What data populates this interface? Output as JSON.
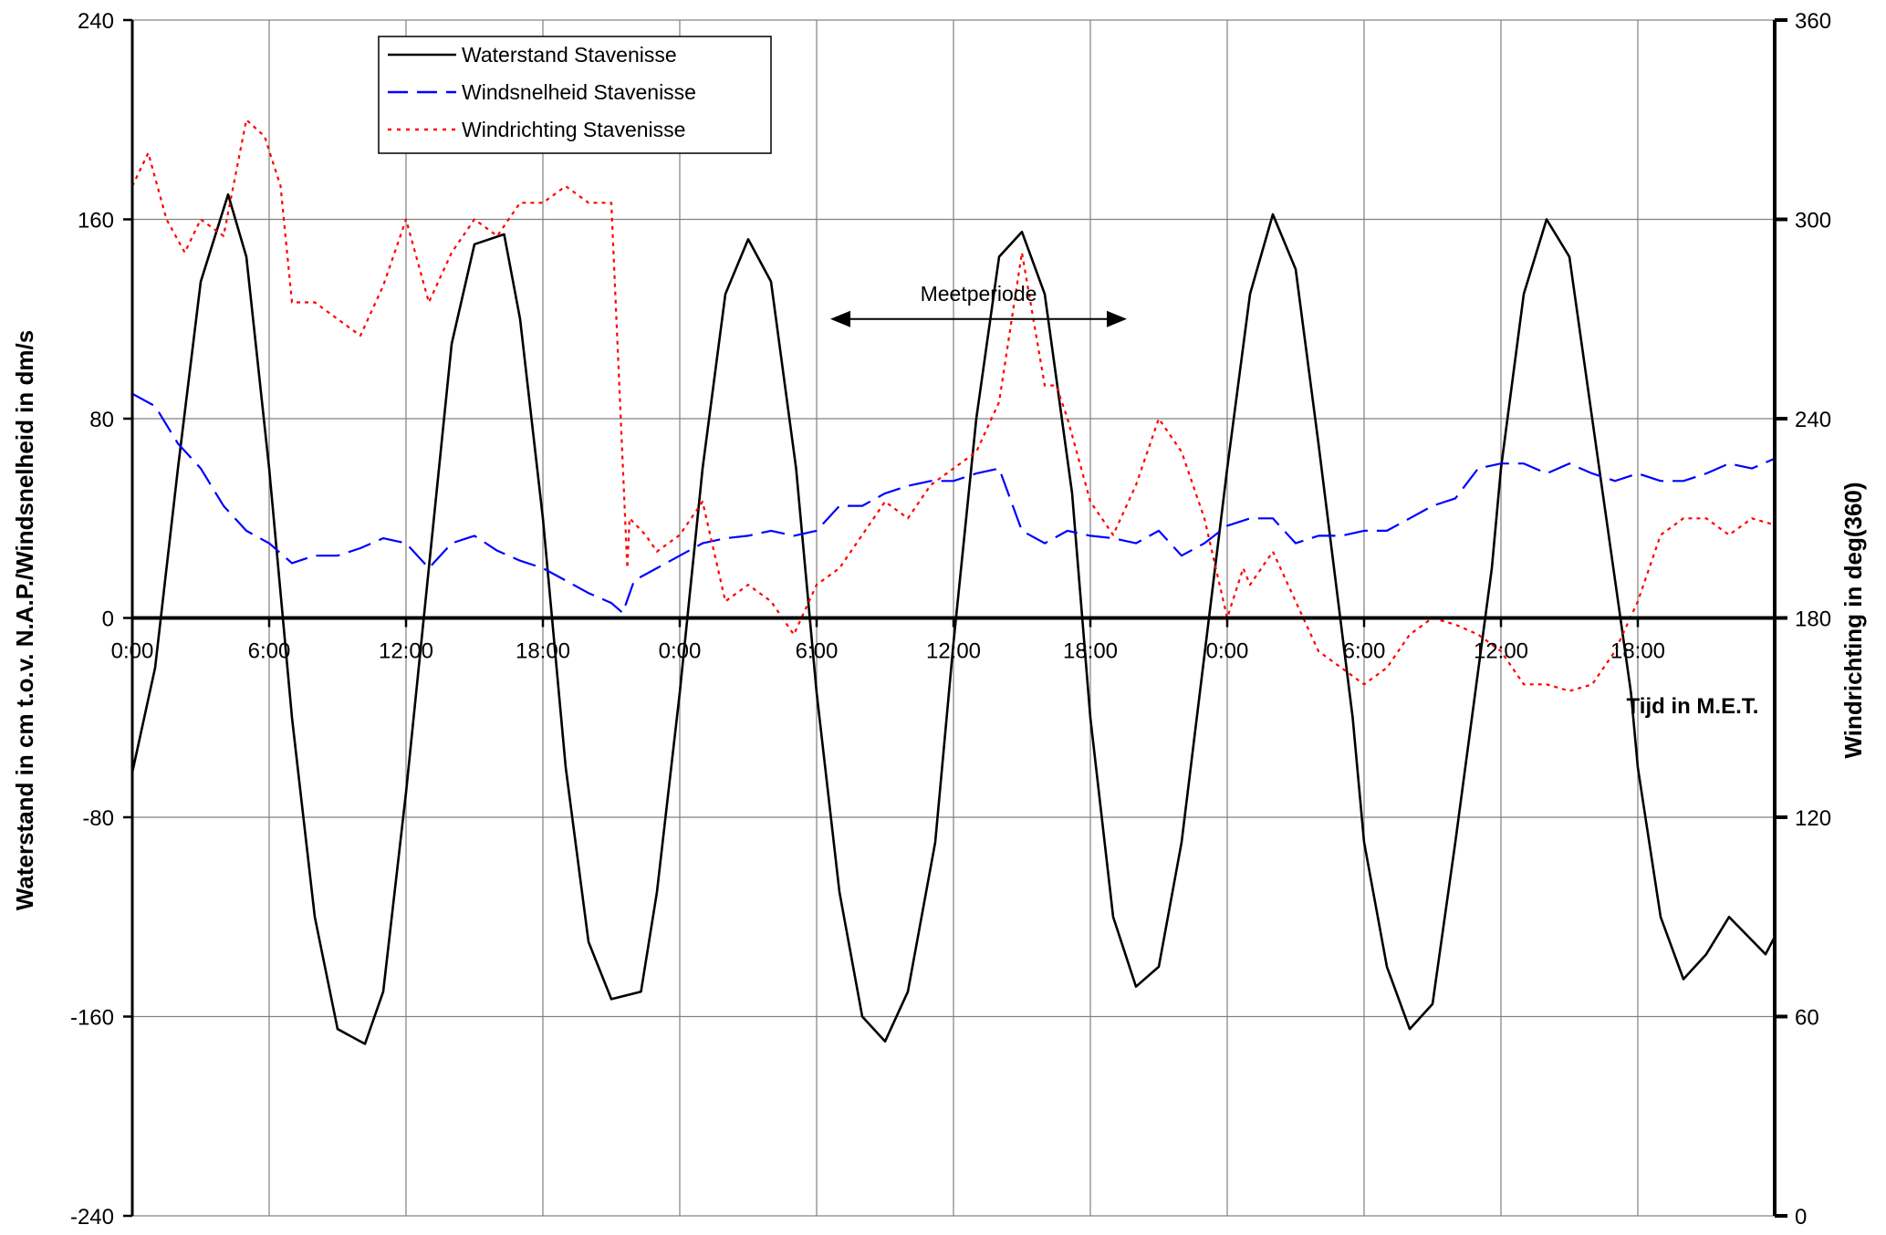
{
  "chart_data": {
    "type": "line",
    "title": "",
    "xlabel": "Tijd in M.E.T.",
    "ylabel": "Waterstand in cm t.o.v. N.A.P./Windsnelheid in dm/s",
    "y2label": "Windrichting in deg(360)",
    "x_unit": "hours",
    "xlim": [
      0,
      72
    ],
    "ylim": [
      -240,
      240
    ],
    "y2lim": [
      0,
      360
    ],
    "x_ticks": [
      0,
      6,
      12,
      18,
      24,
      30,
      36,
      42,
      48,
      54,
      60,
      66
    ],
    "x_tick_labels": [
      "0:00",
      "6:00",
      "12:00",
      "18:00",
      "0:00",
      "6:00",
      "12:00",
      "18:00",
      "0:00",
      "6:00",
      "12:00",
      "18:00"
    ],
    "y_ticks": [
      -240,
      -160,
      -80,
      0,
      80,
      160,
      240
    ],
    "y_tick_labels": [
      "-240",
      "-160",
      "-80",
      "0",
      "80",
      "160",
      "240"
    ],
    "y2_ticks": [
      0,
      60,
      120,
      180,
      240,
      300,
      360
    ],
    "y2_tick_labels": [
      "0",
      "60",
      "120",
      "180",
      "240",
      "300",
      "360"
    ],
    "grid": true,
    "legend_position": "top-left",
    "annotation": {
      "text": "Meetperiode",
      "x_start": 30.6,
      "x_end": 43.6,
      "y": 120
    },
    "series": [
      {
        "name": "Waterstand Stavenisse",
        "axis": "left",
        "color": "#000000",
        "style": "solid",
        "x": [
          0,
          1,
          2,
          3,
          4.2,
          5,
          6,
          7,
          8,
          9,
          10.2,
          11,
          12,
          13,
          14,
          15,
          16.3,
          17,
          18,
          19,
          20,
          21,
          22.3,
          23,
          24,
          25,
          26,
          27,
          28,
          29.1,
          30,
          31,
          32,
          33,
          34,
          35.2,
          36,
          37,
          38,
          39,
          40,
          41.2,
          42,
          43,
          44,
          45,
          46,
          47.6,
          48,
          49,
          50,
          51,
          52,
          53.5,
          54,
          55,
          56,
          57,
          58,
          59.6,
          60,
          61,
          62,
          63,
          64,
          65.7,
          66,
          67,
          68,
          69,
          70,
          71.6,
          72
        ],
        "values": [
          -62,
          -20,
          60,
          135,
          170,
          145,
          60,
          -40,
          -120,
          -165,
          -171,
          -150,
          -70,
          20,
          110,
          150,
          154,
          120,
          40,
          -60,
          -130,
          -153,
          -150,
          -110,
          -30,
          60,
          130,
          152,
          135,
          60,
          -30,
          -110,
          -160,
          -170,
          -150,
          -90,
          -10,
          80,
          145,
          155,
          130,
          50,
          -40,
          -120,
          -148,
          -140,
          -90,
          30,
          60,
          130,
          162,
          140,
          70,
          -40,
          -90,
          -140,
          -165,
          -155,
          -90,
          20,
          60,
          130,
          160,
          145,
          80,
          -30,
          -60,
          -120,
          -145,
          -135,
          -120,
          -135,
          -128
        ]
      },
      {
        "name": "Windsnelheid Stavenisse",
        "axis": "left",
        "color": "#0000ff",
        "style": "dashed",
        "x": [
          0,
          1,
          2,
          3,
          4,
          5,
          6,
          7,
          8,
          9,
          10,
          11,
          12,
          13,
          14,
          15,
          16,
          17,
          18,
          19,
          20,
          21,
          21.5,
          22,
          23,
          24,
          25,
          26,
          27,
          28,
          29,
          30,
          31,
          32,
          33,
          34,
          35,
          36,
          37,
          38,
          39,
          40,
          41,
          42,
          43,
          44,
          45,
          46,
          47,
          48,
          49,
          50,
          51,
          52,
          53,
          54,
          55,
          56,
          57,
          58,
          59,
          60,
          61,
          62,
          63,
          64,
          65,
          66,
          67,
          68,
          69,
          70,
          71,
          72
        ],
        "values": [
          90,
          85,
          70,
          60,
          45,
          35,
          30,
          22,
          25,
          25,
          28,
          32,
          30,
          20,
          30,
          33,
          27,
          23,
          20,
          15,
          10,
          6,
          2,
          15,
          20,
          25,
          30,
          32,
          33,
          35,
          33,
          35,
          45,
          45,
          50,
          53,
          55,
          55,
          58,
          60,
          35,
          30,
          35,
          33,
          32,
          30,
          35,
          25,
          30,
          37,
          40,
          40,
          30,
          33,
          33,
          35,
          35,
          40,
          45,
          48,
          60,
          62,
          62,
          58,
          62,
          58,
          55,
          58,
          55,
          55,
          58,
          62,
          60,
          64
        ]
      },
      {
        "name": "Windrichting Stavenisse",
        "axis": "right",
        "color": "#ff0000",
        "style": "dotted",
        "x": [
          0,
          0.7,
          1.5,
          2.3,
          3,
          4,
          5,
          5.8,
          6.5,
          7,
          8,
          9,
          10,
          11,
          12,
          13,
          14,
          15,
          16,
          17,
          18,
          19,
          20,
          21,
          21.7,
          21.8,
          22.5,
          23,
          24,
          25,
          26,
          27,
          28,
          29,
          30,
          31,
          32,
          33,
          34,
          35,
          36,
          37,
          38,
          39,
          40,
          40.5,
          41,
          42,
          43,
          44,
          45,
          46,
          47,
          48,
          48.7,
          49,
          50,
          51,
          52,
          53,
          54,
          55,
          56,
          57,
          58,
          59,
          60,
          61,
          62,
          63,
          64,
          65,
          66,
          67,
          68,
          69,
          70,
          71,
          72
        ],
        "values": [
          310,
          320,
          300,
          290,
          300,
          295,
          330,
          325,
          310,
          275,
          275,
          270,
          265,
          280,
          300,
          275,
          290,
          300,
          295,
          305,
          305,
          310,
          305,
          305,
          195,
          210,
          205,
          200,
          205,
          215,
          185,
          190,
          185,
          175,
          190,
          195,
          205,
          215,
          210,
          220,
          225,
          230,
          245,
          290,
          250,
          250,
          240,
          215,
          205,
          220,
          240,
          230,
          210,
          180,
          195,
          190,
          200,
          185,
          170,
          165,
          160,
          165,
          175,
          180,
          178,
          175,
          170,
          160,
          160,
          158,
          160,
          170,
          185,
          205,
          210,
          210,
          205,
          210,
          208
        ]
      }
    ]
  }
}
